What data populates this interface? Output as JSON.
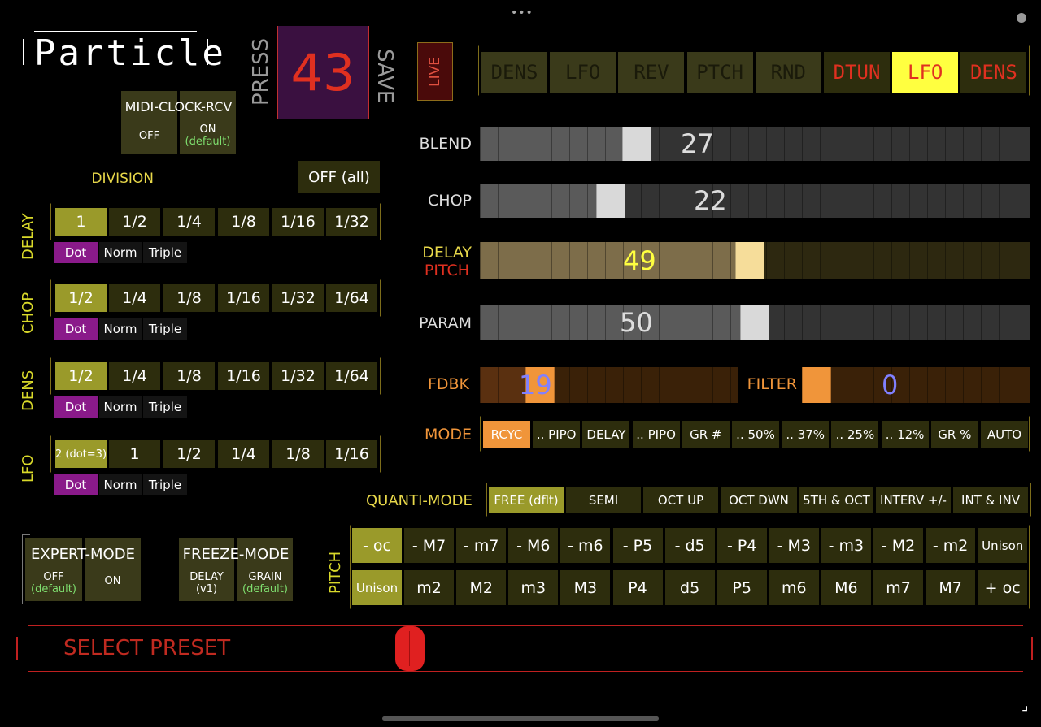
{
  "app": {
    "title": "Particle",
    "press": "PRESS",
    "save": "SAVE",
    "preset_number": "43",
    "live": "LIVE"
  },
  "midi": {
    "title": "MIDI-CLOCK-RCV",
    "off": "OFF",
    "on": "ON",
    "default": "(default)"
  },
  "division": {
    "label": "DIVISION",
    "left_dashes": "---------------",
    "right_dashes": "---------------------",
    "off_all": "OFF (all)"
  },
  "tabs": [
    "DENS",
    "LFO",
    "REV",
    "PTCH",
    "RND",
    "DTUN",
    "LFO",
    "DENS"
  ],
  "rows": [
    {
      "label": "DELAY",
      "values": [
        "1",
        "1/2",
        "1/4",
        "1/8",
        "1/16",
        "1/32"
      ],
      "selected": 0,
      "modes": [
        "Dot",
        "Norm",
        "Triple"
      ]
    },
    {
      "label": "CHOP",
      "values": [
        "1/2",
        "1/4",
        "1/8",
        "1/16",
        "1/32",
        "1/64"
      ],
      "selected": 0,
      "modes": [
        "Dot",
        "Norm",
        "Triple"
      ]
    },
    {
      "label": "DENS",
      "values": [
        "1/2",
        "1/4",
        "1/8",
        "1/16",
        "1/32",
        "1/64"
      ],
      "selected": 0,
      "modes": [
        "Dot",
        "Norm",
        "Triple"
      ]
    },
    {
      "label": "LFO",
      "values": [
        "2 (dot=3)",
        "1",
        "1/2",
        "1/4",
        "1/8",
        "1/16"
      ],
      "selected": 0,
      "modes": [
        "Dot",
        "Norm",
        "Triple"
      ]
    }
  ],
  "sliders": {
    "blend": {
      "label": "BLEND",
      "value": "27",
      "level": 0.27
    },
    "chop": {
      "label": "CHOP",
      "value": "22",
      "level": 0.22
    },
    "delay_pitch": {
      "label1": "DELAY",
      "label2": "PITCH",
      "value": "49",
      "level": 0.49
    },
    "param": {
      "label": "PARAM",
      "value": "50",
      "level": 0.5
    },
    "fdbk": {
      "label": "FDBK",
      "value": "19",
      "level": 0.19
    },
    "filter": {
      "label": "FILTER",
      "value": "0",
      "level": 0
    }
  },
  "mode": {
    "label": "MODE",
    "options": [
      "RCYC",
      ".. PIPO",
      "DELAY",
      ".. PIPO",
      "GR #",
      ".. 50%",
      ".. 37%",
      ".. 25%",
      ".. 12%",
      "GR %",
      "AUTO"
    ]
  },
  "quanti": {
    "label": "QUANTI-MODE",
    "options": [
      "FREE (dflt)",
      "SEMI",
      "OCT UP",
      "OCT DWN",
      "5TH & OCT",
      "INTERV +/-",
      "INT & INV"
    ]
  },
  "pitch": {
    "label": "PITCH",
    "row1": [
      "- oc",
      "- M7",
      "- m7",
      "- M6",
      "- m6",
      "- P5",
      "- d5",
      "- P4",
      "- M3",
      "- m3",
      "- M2",
      "- m2",
      "Unison"
    ],
    "row2": [
      "Unison",
      "m2",
      "M2",
      "m3",
      "M3",
      "P4",
      "d5",
      "P5",
      "m6",
      "M6",
      "m7",
      "M7",
      "+ oc"
    ]
  },
  "expert": {
    "title": "EXPERT-MODE",
    "off": "OFF",
    "on": "ON",
    "default": "(default)"
  },
  "freeze": {
    "title": "FREEZE-MODE",
    "delay": "DELAY",
    "v1": "(v1)",
    "grain": "GRAIN",
    "default": "(default)"
  },
  "preset": {
    "label": "SELECT PRESET",
    "level": 0.38
  },
  "colors": {
    "olive": "#9a9a2a",
    "dark_olive": "#2d2d0d",
    "purple": "#8a1a8a",
    "orange": "#f0953a",
    "red": "#e03020",
    "yellow": "#ffff40"
  }
}
